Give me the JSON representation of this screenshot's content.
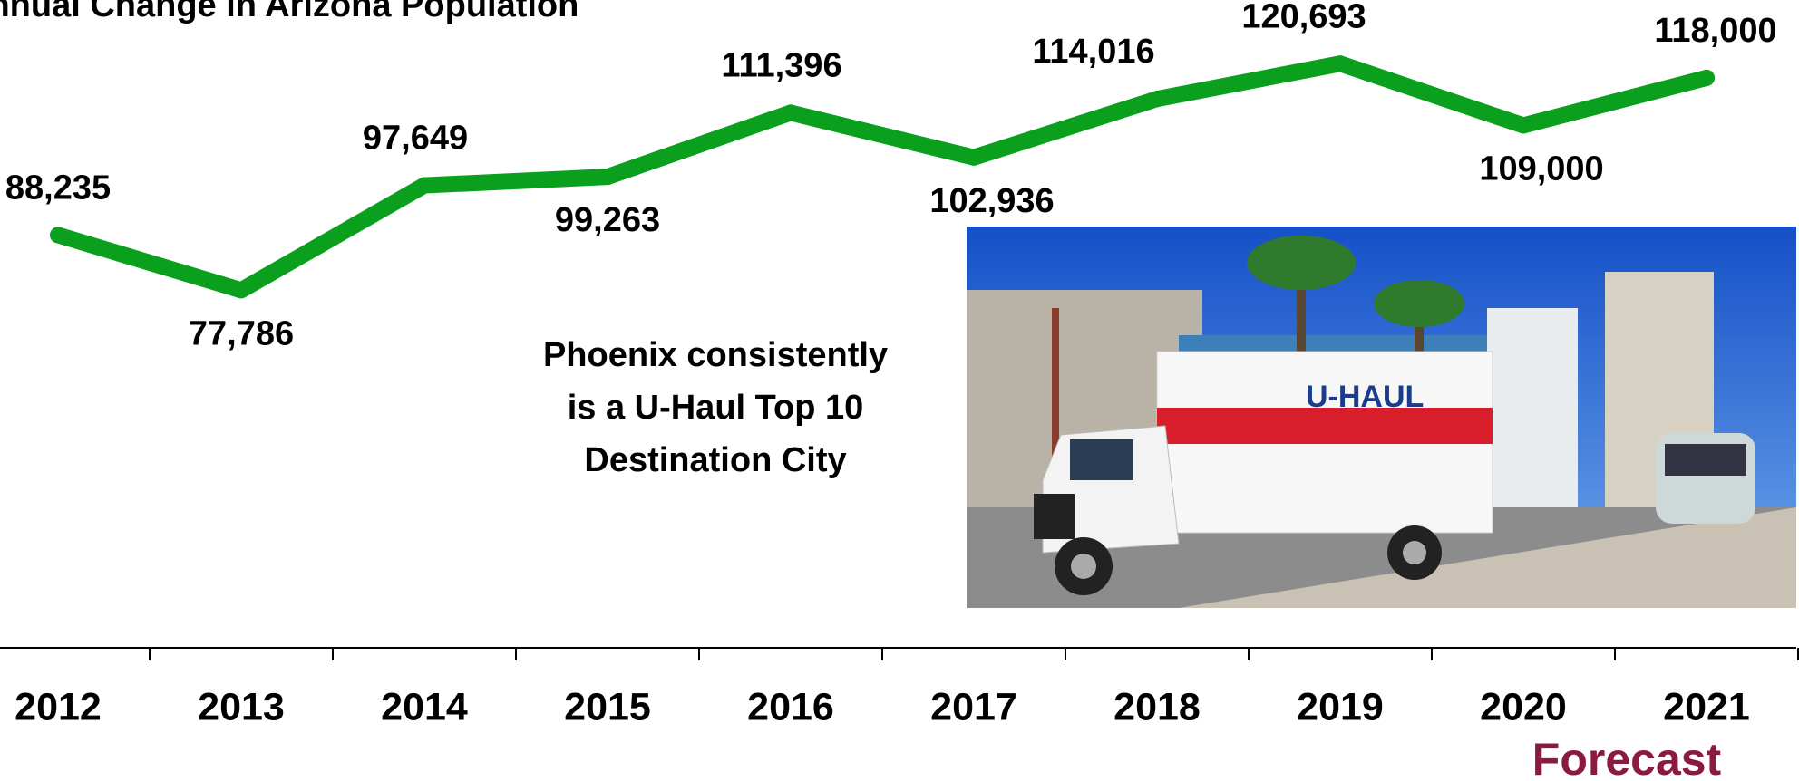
{
  "chart_data": {
    "type": "line",
    "title": "Annual Change in Arizona Population",
    "categories": [
      "2012",
      "2013",
      "2014",
      "2015",
      "2016",
      "2017",
      "2018",
      "2019",
      "2020",
      "2021"
    ],
    "series": [
      {
        "name": "Annual Change",
        "color": "#0aa01e",
        "values": [
          88235,
          77786,
          97649,
          99263,
          111396,
          102936,
          114016,
          120693,
          109000,
          118000
        ],
        "value_labels": [
          "88,235",
          "77,786",
          "97,649",
          "99,263",
          "111,396",
          "102,936",
          "114,016",
          "120,693",
          "109,000",
          "118,000"
        ]
      }
    ],
    "ylim": [
      60000,
      130000
    ],
    "annotation": [
      "Phoenix consistently",
      "is a U-Haul Top 10",
      "Destination City"
    ],
    "forecast_label": "Forecast",
    "photo_label": "U-HAUL"
  }
}
